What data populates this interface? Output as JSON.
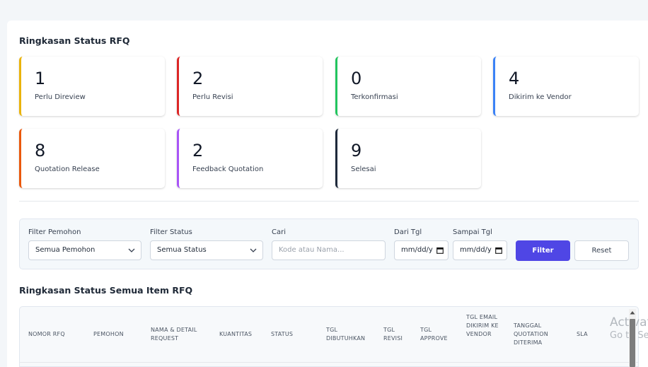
{
  "summary": {
    "title": "Ringkasan Status RFQ",
    "cards": [
      {
        "value": "1",
        "label": "Perlu Direview",
        "color": "#eab308"
      },
      {
        "value": "2",
        "label": "Perlu Revisi",
        "color": "#dc2626"
      },
      {
        "value": "0",
        "label": "Terkonfirmasi",
        "color": "#22c55e"
      },
      {
        "value": "4",
        "label": "Dikirim ke Vendor",
        "color": "#3b82f6"
      },
      {
        "value": "8",
        "label": "Quotation Release",
        "color": "#ea580c"
      },
      {
        "value": "2",
        "label": "Feedback Quotation",
        "color": "#a855f7"
      },
      {
        "value": "9",
        "label": "Selesai",
        "color": "#1e293b"
      }
    ]
  },
  "filters": {
    "pemohon": {
      "label": "Filter Pemohon",
      "value": "Semua Pemohon"
    },
    "status": {
      "label": "Filter Status",
      "value": "Semua Status"
    },
    "cari": {
      "label": "Cari",
      "placeholder": "Kode atau Nama..."
    },
    "dari_tgl": {
      "label": "Dari Tgl",
      "value": "mm/dd/y"
    },
    "sampai_tgl": {
      "label": "Sampai Tgl",
      "value": "mm/dd/y"
    },
    "filter_button": "Filter",
    "reset_button": "Reset"
  },
  "items": {
    "title": "Ringkasan Status Semua Item RFQ",
    "columns": [
      "NOMOR RFQ",
      "PEMOHON",
      "NAMA & DETAIL REQUEST",
      "KUANTITAS",
      "STATUS",
      "TGL DIBUTUHKAN",
      "TGL REVISI",
      "TGL APPROVE",
      "TGL EMAIL DIKIRIM KE VENDOR",
      "TANGGAL QUOTATION DITERIMA",
      "SLA"
    ]
  },
  "watermark": {
    "line1": "Activate",
    "line2": "Go to Se"
  },
  "colors": {
    "primary": "#4f46e5",
    "panel": "#ffffff",
    "background": "#f3f6f9"
  }
}
